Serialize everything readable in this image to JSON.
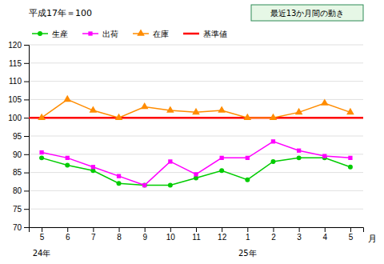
{
  "chart_data": {
    "type": "line",
    "title": "平成17年＝100",
    "xlabel": "月",
    "categories": [
      "5",
      "6",
      "7",
      "8",
      "9",
      "10",
      "11",
      "12",
      "1",
      "2",
      "3",
      "4",
      "5"
    ],
    "series": [
      {
        "name": "生産",
        "color": "#00cc00",
        "marker": "circle",
        "values": [
          89.0,
          87.0,
          85.5,
          82.0,
          81.5,
          81.5,
          83.5,
          85.5,
          83.0,
          88.0,
          89.0,
          89.0,
          86.5
        ]
      },
      {
        "name": "出荷",
        "color": "#ff00ff",
        "marker": "square",
        "values": [
          90.5,
          89.0,
          86.5,
          84.0,
          81.5,
          88.0,
          84.5,
          89.0,
          89.0,
          93.5,
          91.0,
          89.5,
          89.0
        ]
      },
      {
        "name": "在庫",
        "color": "#ff8c00",
        "marker": "triangle",
        "values": [
          100.0,
          105.0,
          102.0,
          100.0,
          103.0,
          102.0,
          101.5,
          102.0,
          100.0,
          100.0,
          101.5,
          104.0,
          101.5
        ]
      }
    ],
    "reference_line": {
      "name": "基準値",
      "value": 100,
      "color": "#ff0000"
    },
    "annotations": [
      {
        "text": "24年",
        "category": 0
      },
      {
        "text": "25年",
        "category": 8
      },
      {
        "text": "最近13か月間の動き"
      }
    ],
    "ylim": [
      70,
      120
    ],
    "yticks": [
      70,
      75,
      80,
      85,
      90,
      95,
      100,
      105,
      110,
      115,
      120
    ],
    "grid": true,
    "legend": "upper left"
  }
}
